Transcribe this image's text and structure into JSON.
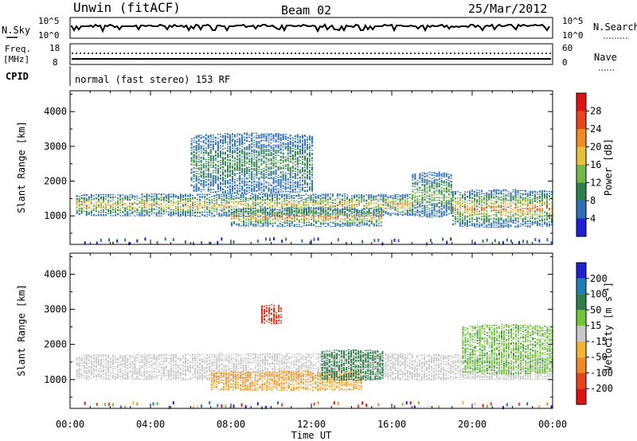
{
  "header": {
    "station": "Unwin (fitACF)",
    "beam": "Beam 02",
    "date": "25/Mar/2012",
    "nsky_label": "N.Sky",
    "nsearch_label": "N.Search",
    "noise_ticks": [
      "10^5",
      "10^0"
    ],
    "freq_label_1": "Freq.",
    "freq_label_2": "[MHz]",
    "freq_ticks": [
      "18",
      "8"
    ],
    "nave_label": "Nave",
    "nave_ticks": [
      "60",
      "0"
    ],
    "cpid_label": "CPID",
    "cpid_text": "normal (fast stereo) 153 RF"
  },
  "chart_data": [
    {
      "type": "heatmap",
      "title": "",
      "panel": "power",
      "xlabel": "Time UT",
      "ylabel": "Slant Range [km]",
      "x_ticks": [
        "00:00",
        "04:00",
        "08:00",
        "12:00",
        "16:00",
        "20:00",
        "00:00"
      ],
      "x_range_hours": [
        0,
        24
      ],
      "y_ticks": [
        1000,
        2000,
        3000,
        4000
      ],
      "y_range_km": [
        180,
        4600
      ],
      "colorbar_label": "Power [dB]",
      "colorbar_ticks": [
        4,
        8,
        12,
        16,
        20,
        24,
        28
      ],
      "colors": [
        "#1f1fd6",
        "#2e6fb5",
        "#2f7f4a",
        "#74b84a",
        "#e5c23a",
        "#f08a24",
        "#e8451a",
        "#e31212"
      ],
      "echo_regions": [
        {
          "t_start": 0.3,
          "t_end": 17.0,
          "r_bottom_km": 1000,
          "r_top_km": 1600,
          "peak_dB": 26
        },
        {
          "t_start": 8.0,
          "t_end": 15.5,
          "r_bottom_km": 700,
          "r_top_km": 1200,
          "peak_dB": 28
        },
        {
          "t_start": 17.0,
          "t_end": 19.0,
          "r_bottom_km": 1000,
          "r_top_km": 2200,
          "peak_dB": 18
        },
        {
          "t_start": 19.0,
          "t_end": 24.0,
          "r_bottom_km": 700,
          "r_top_km": 1700,
          "peak_dB": 28
        },
        {
          "t_start": 6.0,
          "t_end": 12.0,
          "r_bottom_km": 1700,
          "r_top_km": 3300,
          "peak_dB": 14
        }
      ]
    },
    {
      "type": "heatmap",
      "title": "",
      "panel": "velocity",
      "xlabel": "Time UT",
      "ylabel": "Slant Range [km]",
      "x_ticks": [
        "00:00",
        "04:00",
        "08:00",
        "12:00",
        "16:00",
        "20:00",
        "00:00"
      ],
      "x_range_hours": [
        0,
        24
      ],
      "y_ticks": [
        1000,
        2000,
        3000,
        4000
      ],
      "y_range_km": [
        180,
        4600
      ],
      "colorbar_label": "Velocity [m s^-1]",
      "colorbar_ticks": [
        -200,
        -100,
        -50,
        -15,
        15,
        50,
        100,
        200
      ],
      "colors": [
        "#e31212",
        "#e8451a",
        "#f08a24",
        "#f2b531",
        "#c8c8c8",
        "#74c43a",
        "#2f7f4a",
        "#1f7fb5",
        "#1f1fd6"
      ],
      "echo_regions": [
        {
          "t_start": 0.3,
          "t_end": 24.0,
          "r_bottom_km": 1000,
          "r_top_km": 1700,
          "velocity": 0
        },
        {
          "t_start": 7.0,
          "t_end": 14.5,
          "r_bottom_km": 700,
          "r_top_km": 1200,
          "velocity": -50
        },
        {
          "t_start": 12.5,
          "t_end": 15.5,
          "r_bottom_km": 1000,
          "r_top_km": 1800,
          "velocity": 80
        },
        {
          "t_start": 9.5,
          "t_end": 10.5,
          "r_bottom_km": 2600,
          "r_top_km": 3100,
          "velocity": -200
        },
        {
          "t_start": 19.5,
          "t_end": 24.0,
          "r_bottom_km": 1200,
          "r_top_km": 2500,
          "velocity": 40
        }
      ]
    }
  ]
}
